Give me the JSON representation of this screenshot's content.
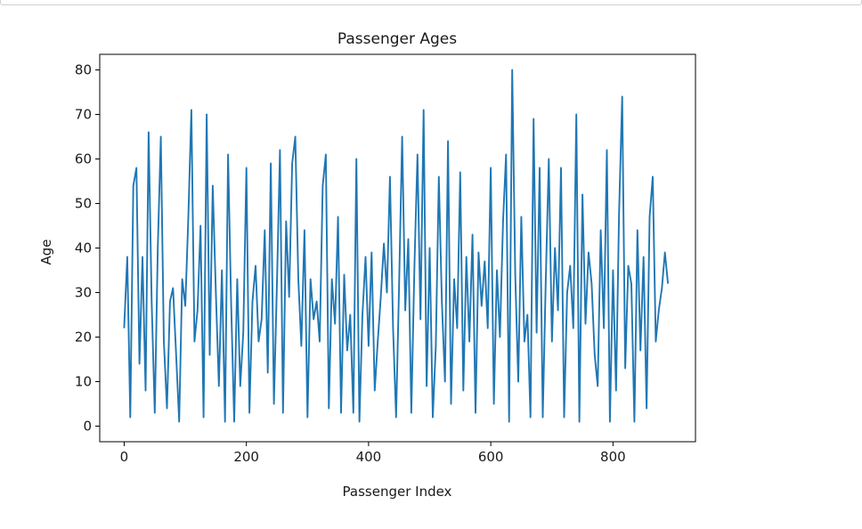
{
  "chart_data": {
    "type": "line",
    "title": "Passenger Ages",
    "xlabel": "Passenger Index",
    "ylabel": "Age",
    "xlim": [
      -40,
      935
    ],
    "ylim": [
      -3.5,
      83.5
    ],
    "xticks": [
      0,
      200,
      400,
      600,
      800
    ],
    "yticks": [
      0,
      10,
      20,
      30,
      40,
      50,
      60,
      70,
      80
    ],
    "grid": false,
    "series": [
      {
        "color": "#1f77b4",
        "x": [
          0,
          5,
          10,
          15,
          20,
          25,
          30,
          35,
          40,
          45,
          50,
          55,
          60,
          65,
          70,
          75,
          80,
          85,
          90,
          95,
          100,
          105,
          110,
          115,
          120,
          125,
          130,
          135,
          140,
          145,
          150,
          155,
          160,
          165,
          170,
          175,
          180,
          185,
          190,
          195,
          200,
          205,
          210,
          215,
          220,
          225,
          230,
          235,
          240,
          245,
          250,
          255,
          260,
          265,
          270,
          275,
          280,
          285,
          290,
          295,
          300,
          305,
          310,
          315,
          320,
          325,
          330,
          335,
          340,
          345,
          350,
          355,
          360,
          365,
          370,
          375,
          380,
          385,
          390,
          395,
          400,
          405,
          410,
          415,
          420,
          425,
          430,
          435,
          440,
          445,
          450,
          455,
          460,
          465,
          470,
          475,
          480,
          485,
          490,
          495,
          500,
          505,
          510,
          515,
          520,
          525,
          530,
          535,
          540,
          545,
          550,
          555,
          560,
          565,
          570,
          575,
          580,
          585,
          590,
          595,
          600,
          605,
          610,
          615,
          620,
          625,
          630,
          635,
          640,
          645,
          650,
          655,
          660,
          665,
          670,
          675,
          680,
          685,
          690,
          695,
          700,
          705,
          710,
          715,
          720,
          725,
          730,
          735,
          740,
          745,
          750,
          755,
          760,
          765,
          770,
          775,
          780,
          785,
          790,
          795,
          800,
          805,
          810,
          815,
          820,
          825,
          830,
          835,
          840,
          845,
          850,
          855,
          860,
          865,
          870,
          875,
          880,
          885,
          890
        ],
        "y": [
          22,
          38,
          2,
          54,
          58,
          14,
          38,
          8,
          66,
          28,
          3,
          40,
          65,
          19,
          4,
          28,
          31,
          16,
          1,
          33,
          27,
          47,
          71,
          19,
          26,
          45,
          2,
          70,
          16,
          54,
          30,
          9,
          35,
          1,
          61,
          28,
          1,
          33,
          9,
          21,
          58,
          3,
          28,
          36,
          19,
          24,
          44,
          12,
          59,
          5,
          32,
          62,
          3,
          46,
          29,
          59,
          65,
          33,
          18,
          44,
          2,
          33,
          24,
          28,
          19,
          54,
          61,
          4,
          33,
          23,
          47,
          3,
          34,
          17,
          25,
          3,
          60,
          1,
          25,
          38,
          18,
          39,
          8,
          19,
          29,
          41,
          30,
          56,
          22,
          2,
          32,
          65,
          26,
          42,
          3,
          36,
          61,
          24,
          71,
          9,
          40,
          2,
          18,
          56,
          28,
          10,
          64,
          5,
          33,
          22,
          57,
          8,
          38,
          19,
          43,
          3,
          39,
          27,
          37,
          22,
          58,
          5,
          35,
          20,
          46,
          61,
          1,
          80,
          34,
          10,
          47,
          19,
          25,
          2,
          69,
          21,
          58,
          2,
          33,
          60,
          19,
          40,
          26,
          58,
          2,
          30,
          36,
          22,
          70,
          1,
          52,
          23,
          39,
          32,
          16,
          9,
          44,
          22,
          62,
          1,
          35,
          8,
          48,
          74,
          13,
          36,
          32,
          1,
          44,
          17,
          38,
          4,
          47,
          56,
          19,
          26,
          31,
          39,
          32
        ]
      }
    ]
  }
}
